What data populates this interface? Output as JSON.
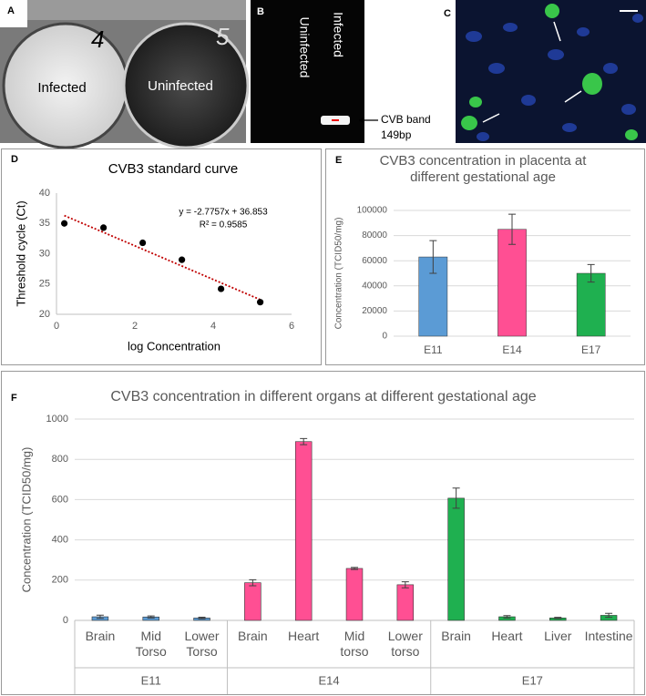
{
  "images": [
    {
      "label": "A",
      "texts": [
        "4",
        "5",
        "Infected",
        "Uninfected"
      ]
    },
    {
      "label": "B",
      "texts": [
        "Uninfected",
        "Infected",
        "CVB band",
        "149bp"
      ]
    },
    {
      "label": "C"
    }
  ],
  "chart_data": [
    {
      "type": "scatter",
      "panel_label": "D",
      "title": "CVB3 standard curve",
      "x_label": "log Concentration",
      "y_label": "Threshold cycle (Ct)",
      "x": [
        0.2,
        1.2,
        2.2,
        3.2,
        4.2,
        5.2
      ],
      "values": [
        35,
        34.3,
        31.8,
        29,
        24.2,
        22
      ],
      "color": "#000000",
      "trendline": {
        "slope": -2.7757,
        "intercept": 36.853,
        "color": "#c00000",
        "equation": "y = -2.7757x + 36.853",
        "r2": "R² = 0.9585"
      },
      "xlim": [
        0,
        6
      ],
      "xticks": [
        0,
        2,
        4,
        6
      ],
      "ylim": [
        20,
        40
      ],
      "yticks": [
        20,
        25,
        30,
        35,
        40
      ]
    },
    {
      "type": "bar",
      "panel_label": "E",
      "title": "CVB3 concentration in placenta at different gestational age",
      "y_label": "Concentration (TCID50/mg)",
      "categories": [
        "E11",
        "E14",
        "E17"
      ],
      "values": [
        63000,
        85000,
        50000
      ],
      "errors": [
        13000,
        12000,
        7000
      ],
      "colors": [
        "#5b9bd5",
        "#ff4f93",
        "#1fb050"
      ],
      "ylim": [
        0,
        100000
      ],
      "yticks": [
        0,
        20000,
        40000,
        60000,
        80000,
        100000
      ],
      "grid": true
    },
    {
      "type": "bar",
      "panel_label": "F",
      "title": "CVB3 concentration in different organs at different gestational age",
      "y_label": "Concentration (TCID50/mg)",
      "groups": [
        {
          "name": "E11",
          "color": "#5b9bd5",
          "categories": [
            "Brain",
            "Mid Torso",
            "Lower Torso"
          ],
          "values": [
            18,
            17,
            12
          ],
          "errors": [
            8,
            5,
            4
          ]
        },
        {
          "name": "E14",
          "color": "#ff4f93",
          "categories": [
            "Brain",
            "Heart",
            "Mid torso",
            "Lower torso"
          ],
          "values": [
            187,
            888,
            258,
            177
          ],
          "errors": [
            15,
            15,
            5,
            15
          ]
        },
        {
          "name": "E17",
          "color": "#1fb050",
          "categories": [
            "Brain",
            "Heart",
            "Liver",
            "Intestine"
          ],
          "values": [
            607,
            18,
            12,
            25
          ],
          "errors": [
            50,
            6,
            3,
            10
          ]
        }
      ],
      "ylim": [
        0,
        1000
      ],
      "yticks": [
        0,
        200,
        400,
        600,
        800,
        1000
      ],
      "grid": true
    }
  ]
}
